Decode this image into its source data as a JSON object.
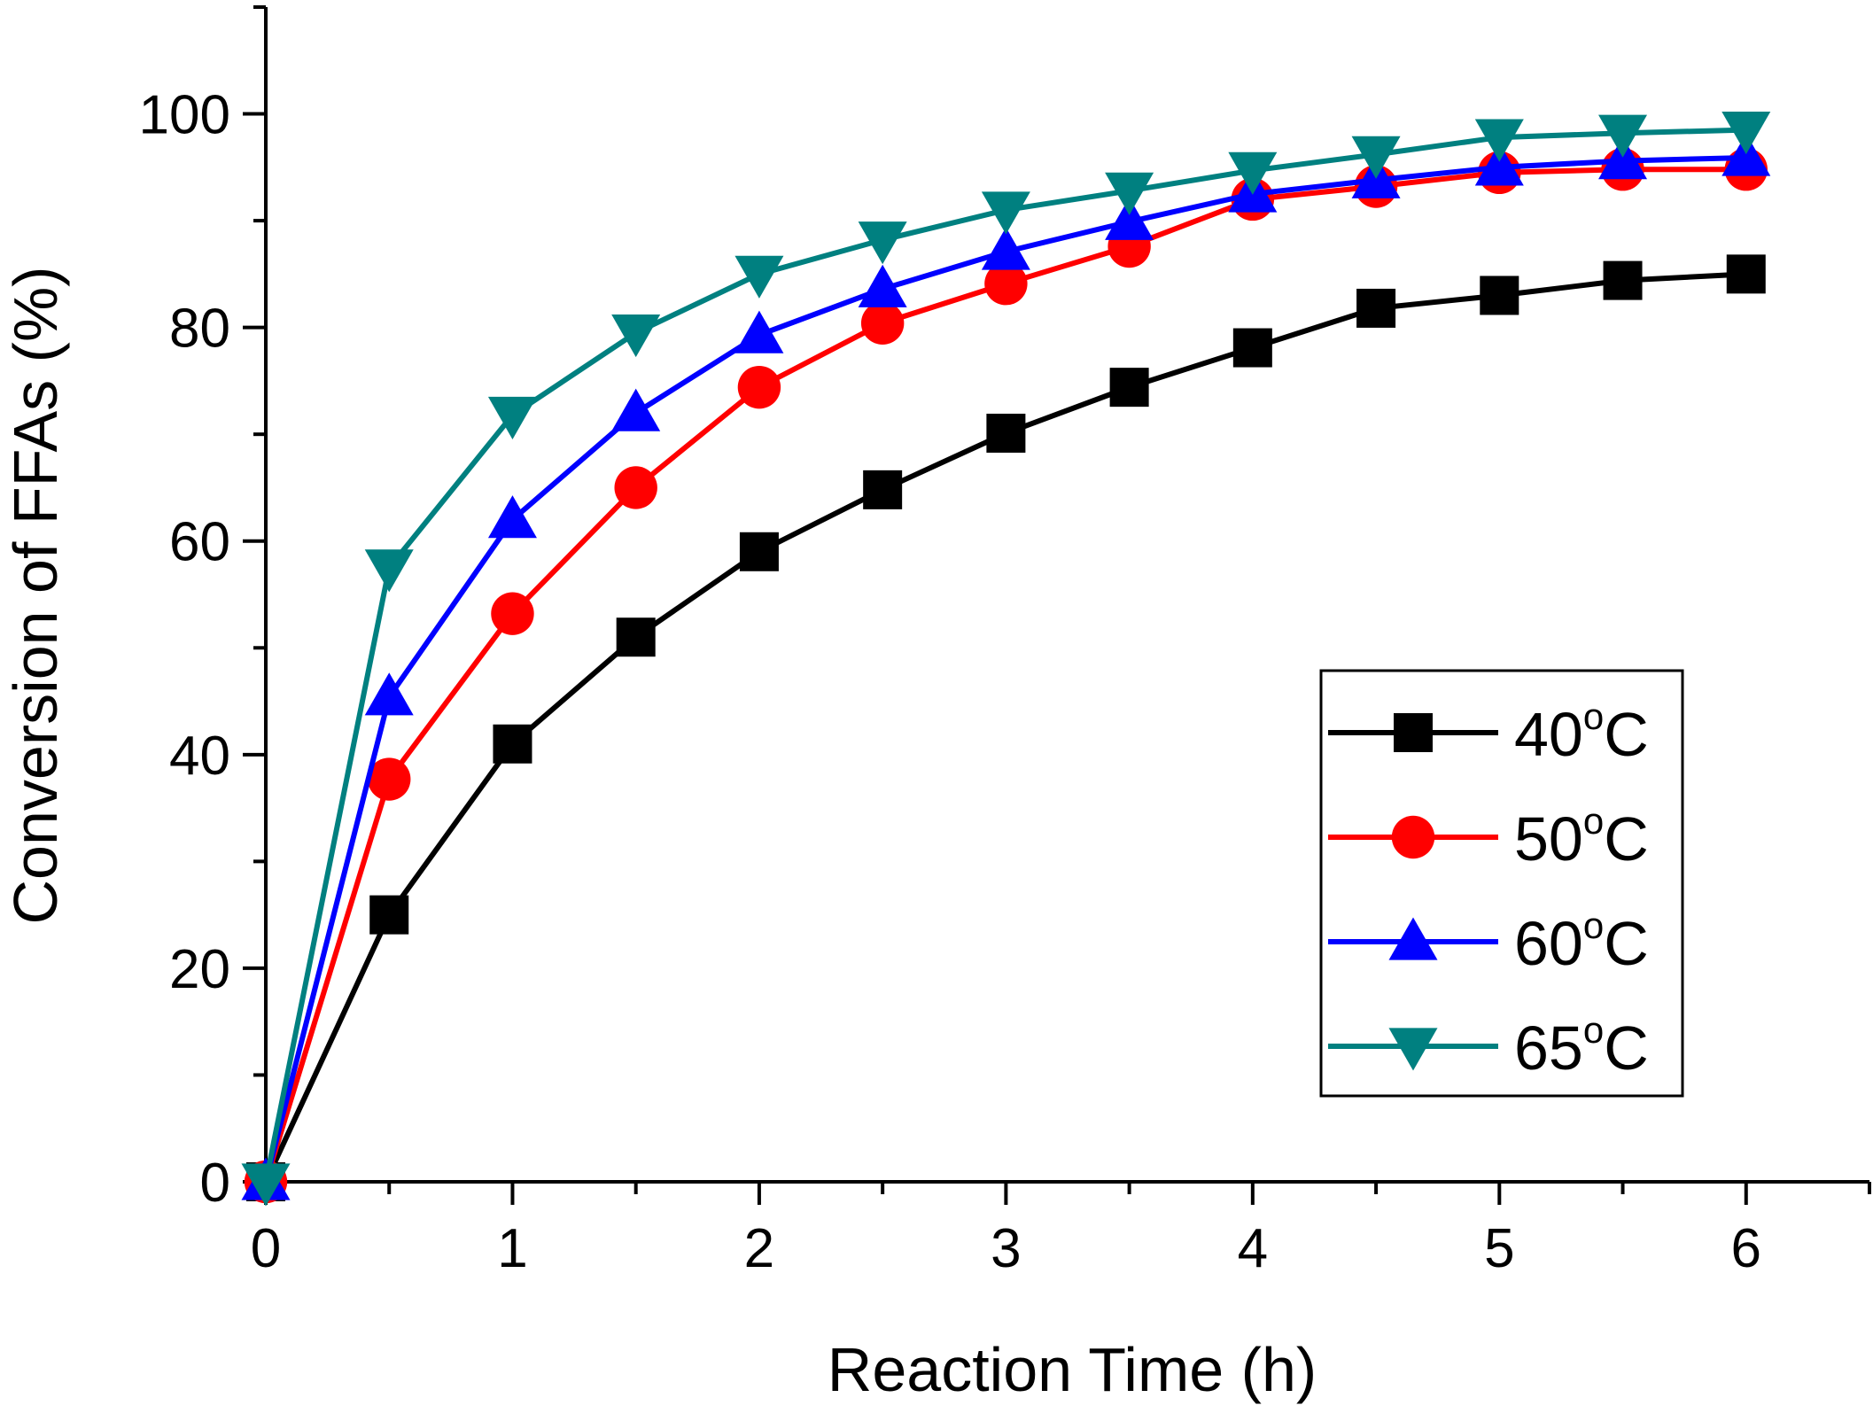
{
  "chart_data": {
    "type": "line",
    "title": "",
    "xlabel": "Reaction Time (h)",
    "ylabel": "Conversion of FFAs (%)",
    "xlim": [
      0,
      6.5
    ],
    "ylim": [
      0,
      110
    ],
    "x_ticks": [
      "0",
      "1",
      "2",
      "3",
      "4",
      "5",
      "6"
    ],
    "y_ticks": [
      "0",
      "20",
      "40",
      "60",
      "80",
      "100"
    ],
    "legend_position": "center-right",
    "x": [
      0,
      0.5,
      1,
      1.5,
      2,
      2.5,
      3,
      3.5,
      4,
      4.5,
      5,
      5.5,
      6
    ],
    "series": [
      {
        "name": "40°C",
        "label_main": "40",
        "label_sup": "o",
        "label_unit": "C",
        "color": "#000000",
        "marker": "square",
        "values": [
          0,
          25,
          41,
          51,
          59,
          64.8,
          70.1,
          74.4,
          78.1,
          81.8,
          83,
          84.4,
          85
        ]
      },
      {
        "name": "50°C",
        "label_main": "50",
        "label_sup": "o",
        "label_unit": "C",
        "color": "#ff0000",
        "marker": "circle",
        "values": [
          0,
          37.7,
          53.2,
          65,
          74.4,
          80.4,
          84.1,
          87.6,
          92,
          93.2,
          94.5,
          94.8,
          94.8
        ]
      },
      {
        "name": "60°C",
        "label_main": "60",
        "label_sup": "o",
        "label_unit": "C",
        "color": "#0000ff",
        "marker": "triangle-up",
        "values": [
          0,
          45.4,
          62,
          72,
          79.3,
          83.6,
          87.1,
          89.9,
          92.5,
          93.8,
          95,
          95.6,
          95.9
        ]
      },
      {
        "name": "65°C",
        "label_main": "65",
        "label_sup": "o",
        "label_unit": "C",
        "color": "#008080",
        "marker": "triangle-down",
        "values": [
          0,
          57.5,
          71.8,
          79.5,
          85,
          88.2,
          91,
          92.8,
          94.7,
          96.2,
          97.8,
          98.2,
          98.5
        ]
      }
    ]
  }
}
